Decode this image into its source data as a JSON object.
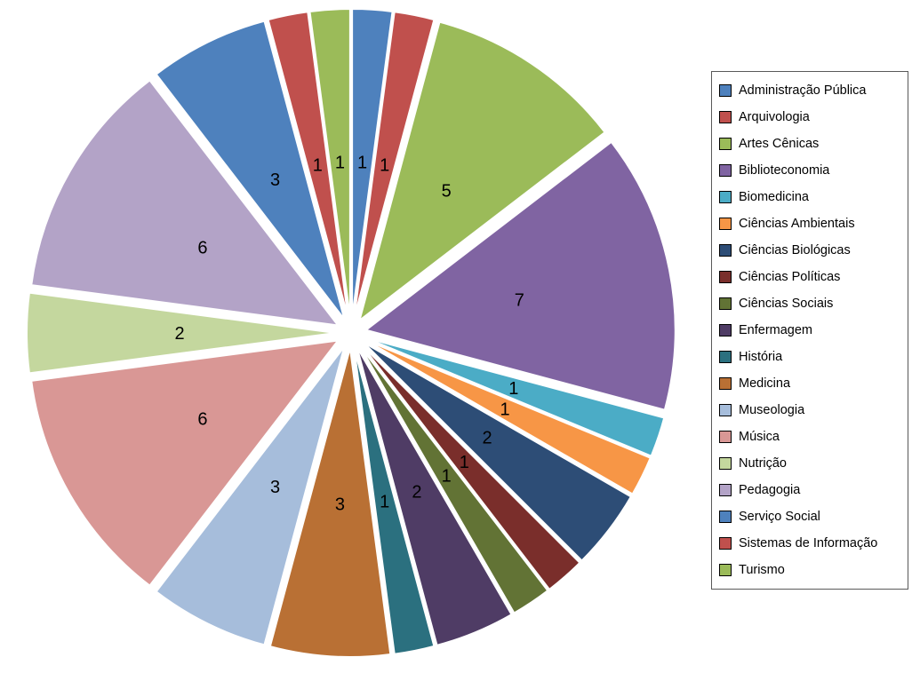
{
  "chart_data": {
    "type": "pie",
    "title": "",
    "legend_position": "right",
    "exploded": true,
    "direction": "clockwise",
    "start_angle_deg": 0,
    "data_labels": "value",
    "total": 48,
    "categories": [
      "Administração Pública",
      "Arquivologia",
      "Artes Cênicas",
      "Biblioteconomia",
      "Biomedicina",
      "Ciências Ambientais",
      "Ciências Biológicas",
      "Ciências Políticas",
      "Ciências Sociais",
      "Enfermagem",
      "História",
      "Medicina",
      "Museologia",
      "Música",
      "Nutrição",
      "Pedagogia",
      "Serviço Social",
      "Sistemas de Informação",
      "Turismo"
    ],
    "values": [
      1,
      1,
      5,
      7,
      1,
      1,
      2,
      1,
      1,
      2,
      1,
      3,
      3,
      6,
      2,
      6,
      3,
      1,
      1
    ],
    "colors": [
      "#4E81BD",
      "#C0504D",
      "#9BBB59",
      "#8064A2",
      "#4BACC6",
      "#F79646",
      "#2D4D76",
      "#7A2E2B",
      "#627335",
      "#4F3C65",
      "#2B707F",
      "#B97034",
      "#A6BDDB",
      "#D99795",
      "#C4D79E",
      "#B3A3C7",
      "#4E81BD",
      "#C0504D",
      "#9BBB59"
    ]
  },
  "legend": {
    "border_color": "#595959"
  }
}
